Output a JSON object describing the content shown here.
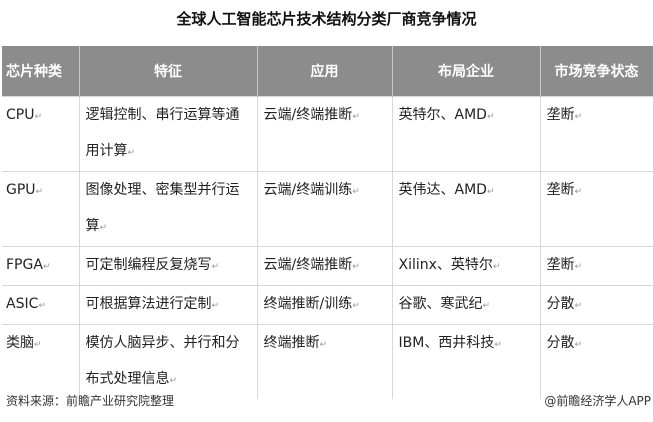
{
  "title": "全球人工智能芯片技术结构分类厂商竞争情况",
  "table": {
    "headers": [
      "芯片种类",
      "特征",
      "应用",
      "布局企业",
      "市场竞争状态"
    ],
    "rows": [
      [
        "CPU",
        "逻辑控制、串行运算等通用计算",
        "云端/终端推断",
        "英特尔、AMD",
        "垄断"
      ],
      [
        "GPU",
        "图像处理、密集型并行运算",
        "云端/终端训练",
        "英伟达、AMD",
        "垄断"
      ],
      [
        "FPGA",
        "可定制编程反复烧写",
        "云端/终端推断",
        "Xilinx、英特尔",
        "垄断"
      ],
      [
        "ASIC",
        "可根据算法进行定制",
        "终端推断/训练",
        "谷歌、寒武纪",
        "分散"
      ],
      [
        "类脑",
        "模仿人脑异步、并行和分布式处理信息",
        "终端推断",
        "IBM、西井科技",
        "分散"
      ]
    ]
  },
  "footer": {
    "source": "资料来源：前瞻产业研究院整理",
    "watermark": "@前瞻经济学人APP"
  },
  "colors": {
    "header_bg": "#8c8c8c",
    "header_text": "#ffffff"
  }
}
